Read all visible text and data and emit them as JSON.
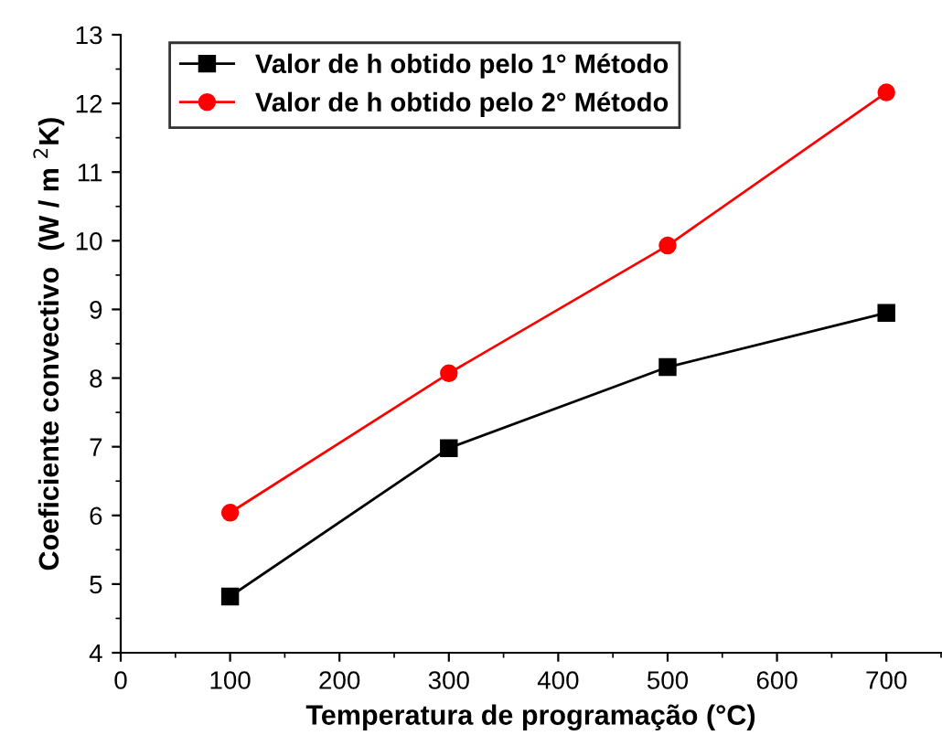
{
  "chart_data": {
    "type": "line",
    "xlabel": "Temperatura de programação (°C)",
    "ylabel": "Coeficiente convectivo  (W / m $^{2}$K)",
    "x": [
      100,
      300,
      500,
      700
    ],
    "series": [
      {
        "name": "Valor de h obtido pelo 1° Método",
        "color": "#000000",
        "marker": "square",
        "values": [
          4.82,
          6.98,
          8.16,
          8.95
        ]
      },
      {
        "name": "Valor de h obtido pelo 2° Método",
        "color": "#ff0000",
        "marker": "circle",
        "values": [
          6.04,
          8.07,
          9.93,
          12.16
        ]
      }
    ],
    "xlim": [
      0,
      750
    ],
    "xticks": [
      0,
      100,
      200,
      300,
      400,
      500,
      600,
      700
    ],
    "ylim": [
      4,
      13
    ],
    "yticks": [
      4,
      5,
      6,
      7,
      8,
      9,
      10,
      11,
      12,
      13
    ],
    "grid": false,
    "legend": "top left",
    "line_style": "solid"
  }
}
